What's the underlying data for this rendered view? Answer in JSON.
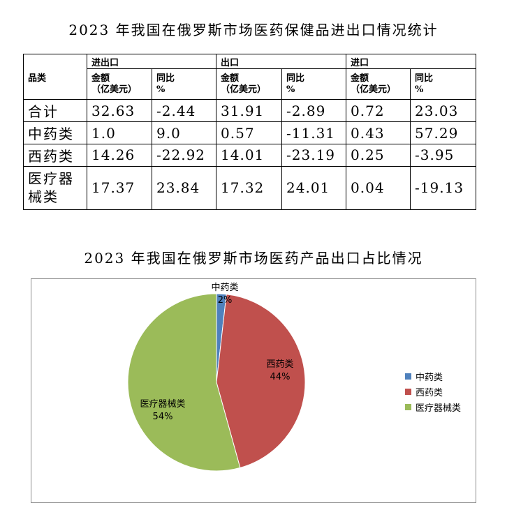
{
  "table": {
    "title": "2023 年我国在俄罗斯市场医药保健品进出口情况统计",
    "corner_label": "品类",
    "groups": [
      "进出口",
      "出口",
      "进口"
    ],
    "amount_label_1": "金额",
    "amount_label_2": "（亿美元）",
    "yoy_label_1": "同比",
    "yoy_label_2": "%",
    "rows": [
      {
        "label": "合计",
        "values": [
          "32.63",
          "-2.44",
          "31.91",
          "-2.89",
          "0.72",
          "23.03"
        ]
      },
      {
        "label": "中药类",
        "values": [
          "1.0",
          "9.0",
          "0.57",
          "-11.31",
          "0.43",
          "57.29"
        ]
      },
      {
        "label": "西药类",
        "values": [
          "14.26",
          "-22.92",
          "14.01",
          "-23.19",
          "0.25",
          "-3.95"
        ]
      },
      {
        "label": "医疗器械类",
        "values": [
          "17.37",
          "23.84",
          "17.32",
          "24.01",
          "0.04",
          "-19.13"
        ]
      }
    ]
  },
  "chart_data": {
    "type": "pie",
    "title": "2023 年我国在俄罗斯市场医药产品出口占比情况",
    "categories": [
      "中药类",
      "西药类",
      "医疗器械类"
    ],
    "values": [
      0.57,
      14.01,
      17.32
    ],
    "percent_labels": [
      "2%",
      "44%",
      "54%"
    ],
    "colors": [
      "#4f81bd",
      "#c0504d",
      "#9bbb59"
    ],
    "legend_position": "right"
  }
}
